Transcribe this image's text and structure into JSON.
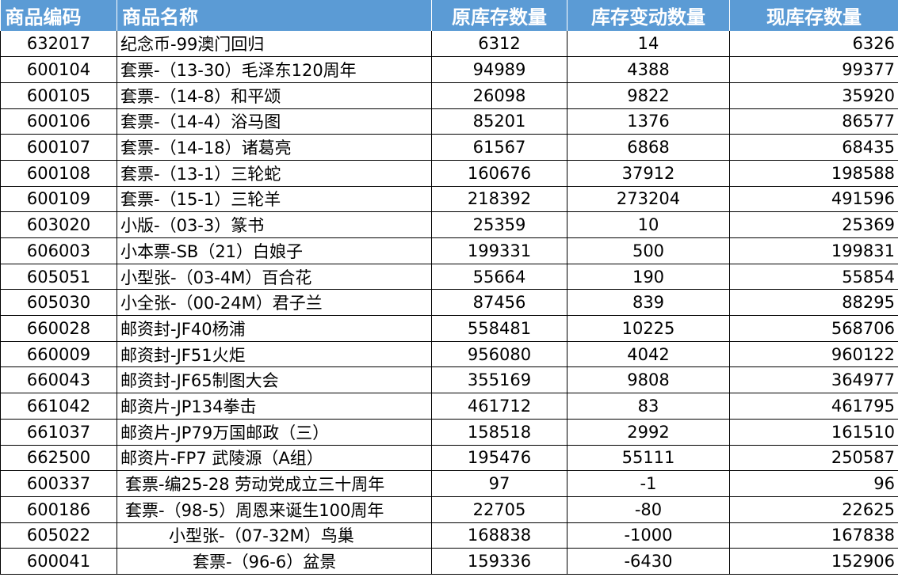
{
  "headers": [
    "商品编码",
    "商品名称",
    "原库存数量",
    "库存变动数量",
    "现库存数量"
  ],
  "rows": [
    {
      "code": "632017",
      "name": "纪念币-99澳门回归",
      "orig": "6312",
      "change": "14",
      "now": "6326"
    },
    {
      "code": "600104",
      "name": "套票-（13-30）毛泽东120周年",
      "orig": "94989",
      "change": "4388",
      "now": "99377"
    },
    {
      "code": "600105",
      "name": "套票-（14-8）和平颂",
      "orig": "26098",
      "change": "9822",
      "now": "35920"
    },
    {
      "code": "600106",
      "name": "套票-（14-4）浴马图",
      "orig": "85201",
      "change": "1376",
      "now": "86577"
    },
    {
      "code": "600107",
      "name": "套票-（14-18）诸葛亮",
      "orig": "61567",
      "change": "6868",
      "now": "68435"
    },
    {
      "code": "600108",
      "name": "套票-（13-1）三轮蛇",
      "orig": "160676",
      "change": "37912",
      "now": "198588"
    },
    {
      "code": "600109",
      "name": "套票-（15-1）三轮羊",
      "orig": "218392",
      "change": "273204",
      "now": "491596"
    },
    {
      "code": "603020",
      "name": "小版-（03-3）篆书",
      "orig": "25359",
      "change": "10",
      "now": "25369"
    },
    {
      "code": "606003",
      "name": "小本票-SB（21）白娘子",
      "orig": "199331",
      "change": "500",
      "now": "199831"
    },
    {
      "code": "605051",
      "name": "小型张-（03-4M）百合花",
      "orig": "55664",
      "change": "190",
      "now": "55854"
    },
    {
      "code": "605030",
      "name": "小全张-（00-24M）君子兰",
      "orig": "87456",
      "change": "839",
      "now": "88295"
    },
    {
      "code": "660028",
      "name": "邮资封-JF40杨浦",
      "orig": "558481",
      "change": "10225",
      "now": "568706"
    },
    {
      "code": "660009",
      "name": "邮资封-JF51火炬",
      "orig": "956080",
      "change": "4042",
      "now": "960122"
    },
    {
      "code": "660043",
      "name": "邮资封-JF65制图大会",
      "orig": "355169",
      "change": "9808",
      "now": "364977"
    },
    {
      "code": "661042",
      "name": "邮资片-JP134拳击",
      "orig": "461712",
      "change": "83",
      "now": "461795"
    },
    {
      "code": "661037",
      "name": "邮资片-JP79万国邮政（三）",
      "orig": "158518",
      "change": "2992",
      "now": "161510"
    },
    {
      "code": "662500",
      "name": "邮资片-FP7 武陵源（A组）",
      "orig": "195476",
      "change": "55111",
      "now": "250587"
    },
    {
      "code": "600337",
      "name": "套票-编25-28 劳动党成立三十周年",
      "orig": "97",
      "change": "-1",
      "now": "96"
    },
    {
      "code": "600186",
      "name": "套票-（98-5）周恩来诞生100周年",
      "orig": "22705",
      "change": "-80",
      "now": "22625"
    },
    {
      "code": "605022",
      "name": "小型张-（07-32M）鸟巢",
      "orig": "168838",
      "change": "-1000",
      "now": "167838"
    },
    {
      "code": "600041",
      "name": "套票-（96-6）盆景",
      "orig": "159336",
      "change": "-6430",
      "now": "152906"
    }
  ]
}
